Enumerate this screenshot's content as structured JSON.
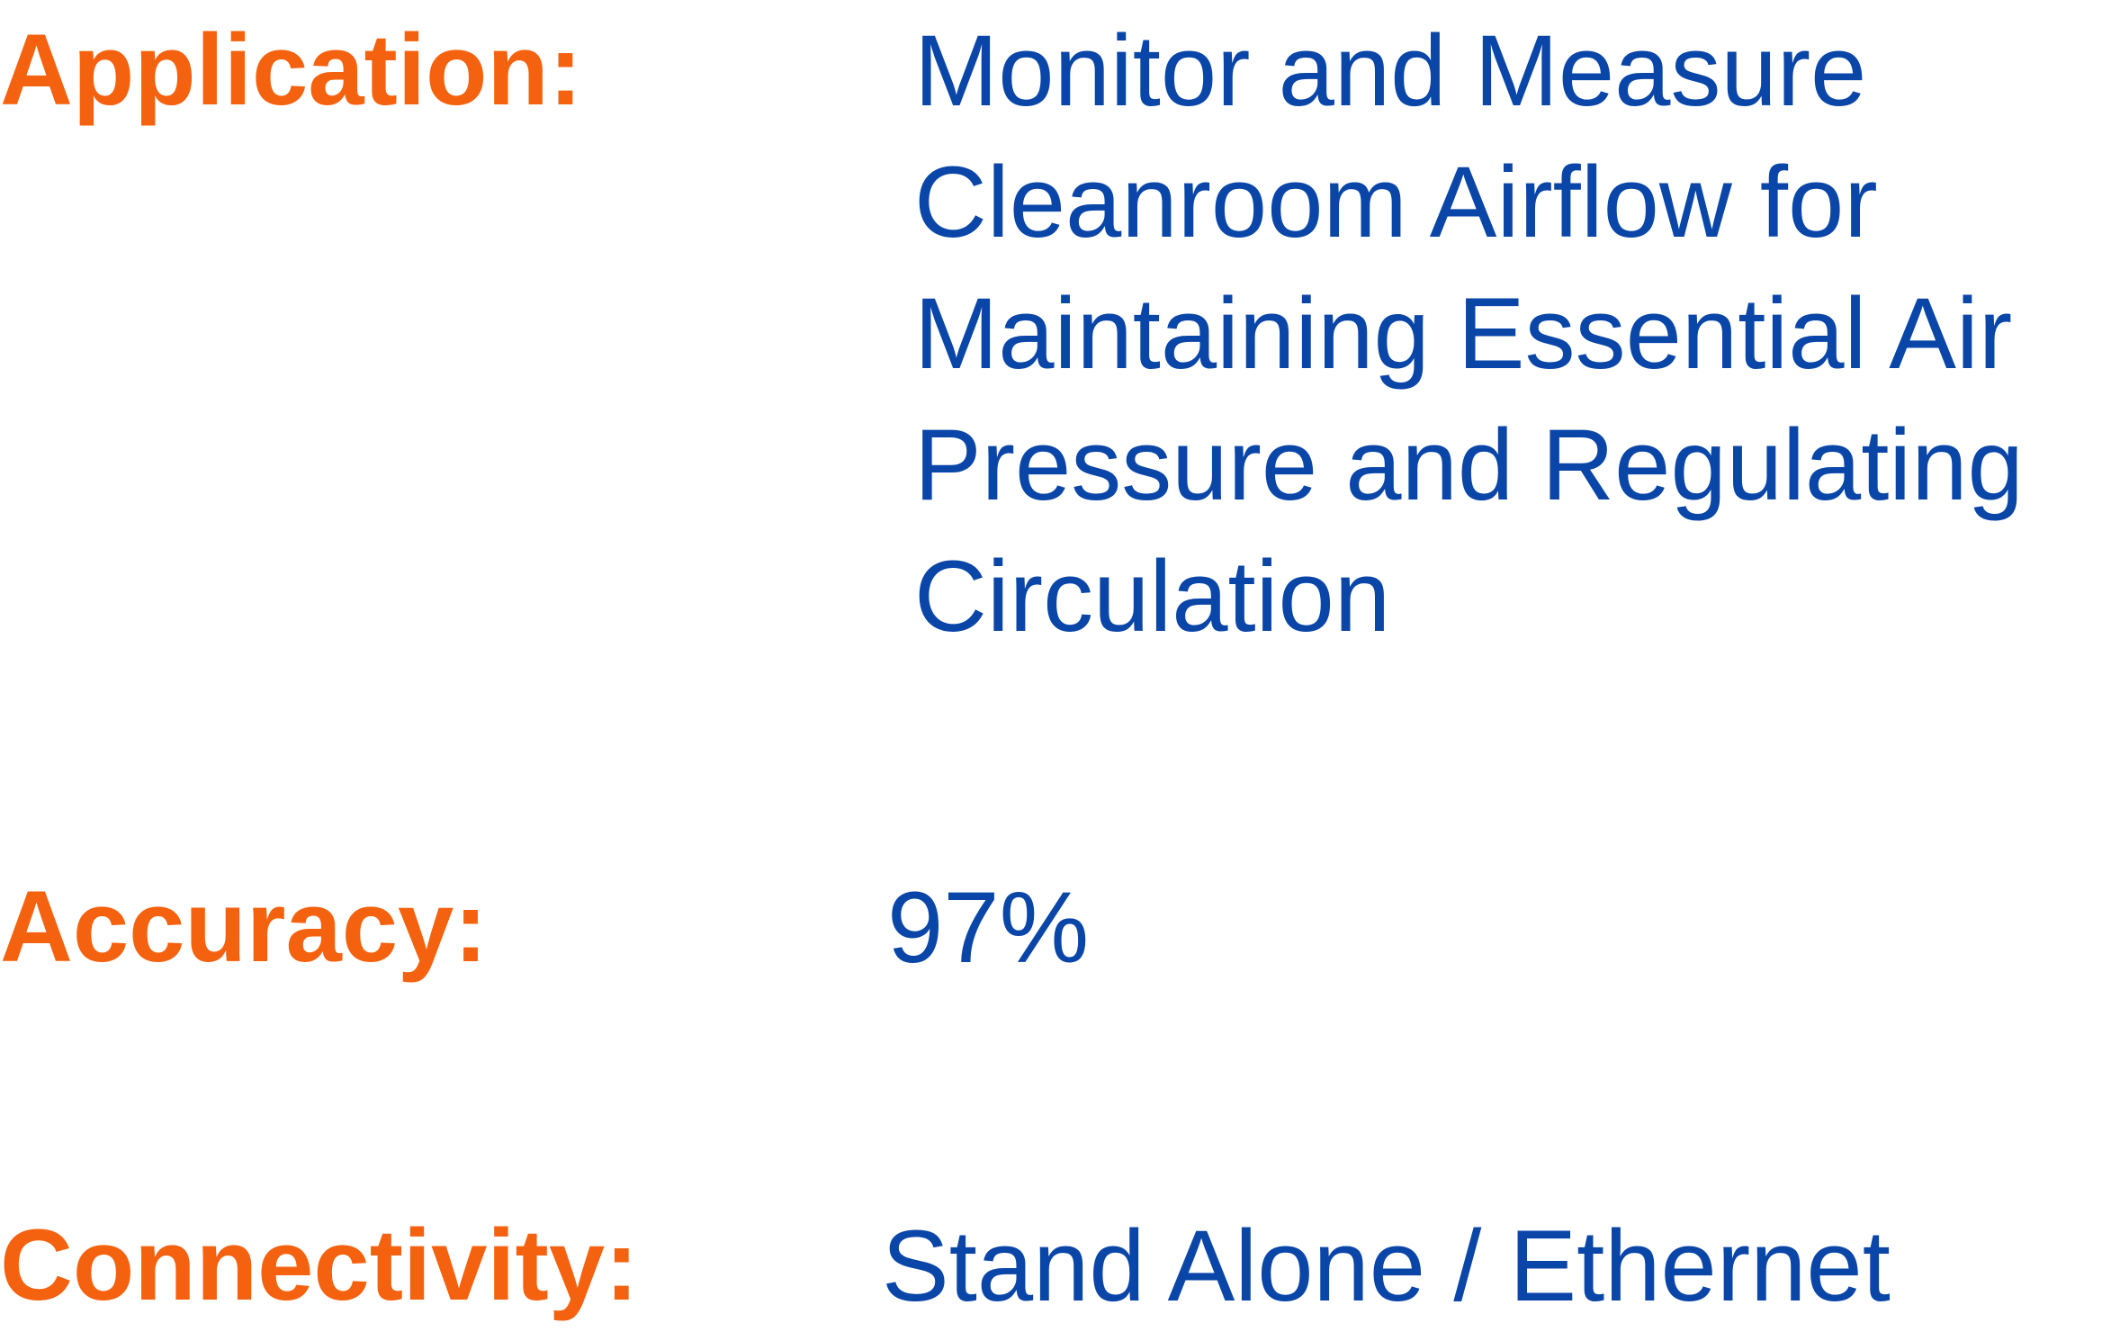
{
  "colors": {
    "label": "#f5620f",
    "value": "#0a46a8"
  },
  "specs": {
    "application": {
      "label": "Application:",
      "value_lines": [
        "Monitor and Measure",
        "Cleanroom Airflow for",
        "Maintaining Essential Air",
        "Pressure and Regulating",
        "Circulation"
      ]
    },
    "accuracy": {
      "label": "Accuracy:",
      "value": "97%"
    },
    "connectivity": {
      "label": "Connectivity:",
      "value": "Stand Alone / Ethernet"
    }
  }
}
